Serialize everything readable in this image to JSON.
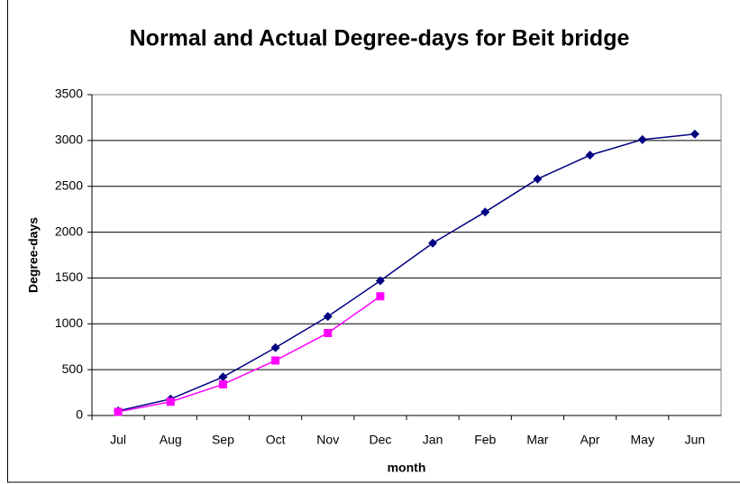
{
  "chart_data": {
    "type": "line",
    "title": "Normal and Actual Degree-days for Beit bridge",
    "xlabel": "month",
    "ylabel": "Degree-days",
    "categories": [
      "Jul",
      "Aug",
      "Sep",
      "Oct",
      "Nov",
      "Dec",
      "Jan",
      "Feb",
      "Mar",
      "Apr",
      "May",
      "Jun"
    ],
    "series": [
      {
        "color": "#000080",
        "marker": "diamond",
        "values": [
          50,
          180,
          420,
          740,
          1080,
          1470,
          1880,
          2220,
          2580,
          2840,
          3010,
          3070
        ]
      },
      {
        "color": "#ff00ff",
        "marker": "square",
        "values": [
          40,
          150,
          340,
          600,
          900,
          1300,
          null,
          null,
          null,
          null,
          null,
          null
        ]
      }
    ],
    "ylim": [
      0,
      3500
    ],
    "yticks": [
      0,
      500,
      1000,
      1500,
      2000,
      2500,
      3000,
      3500
    ],
    "grid": true
  }
}
